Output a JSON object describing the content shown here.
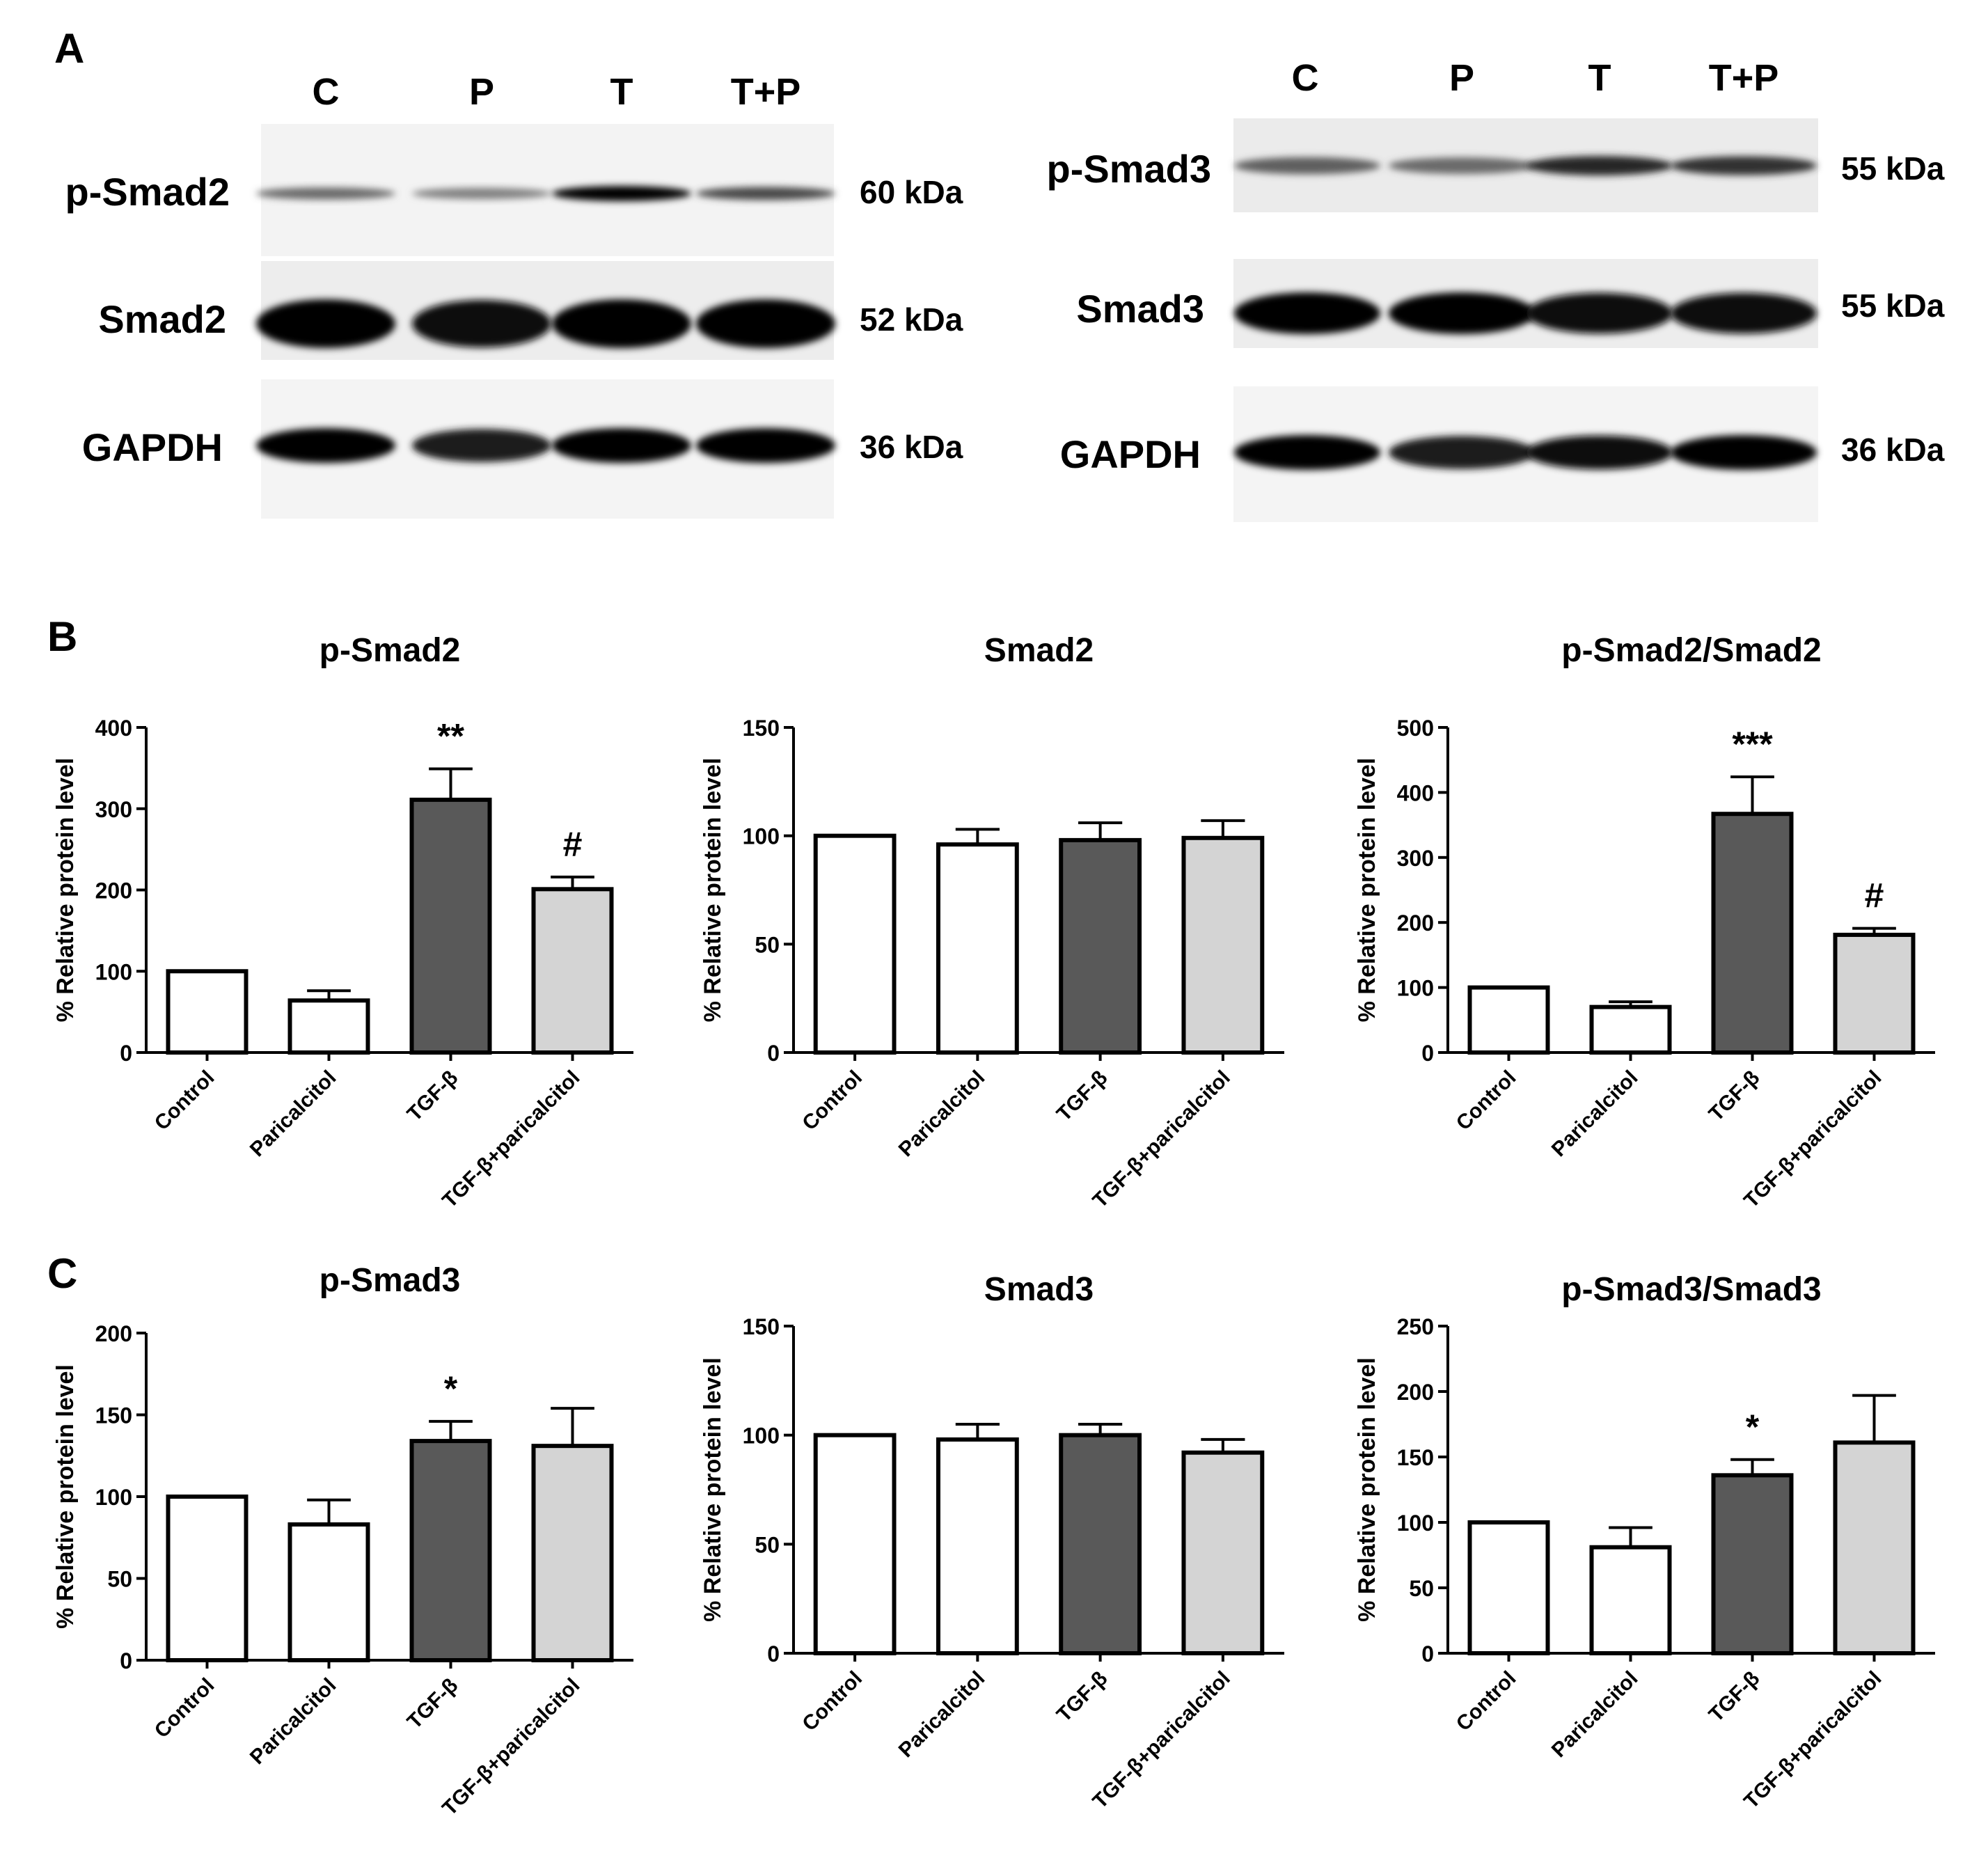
{
  "panels": {
    "a": "A",
    "b": "B",
    "c": "C"
  },
  "blot_left": {
    "lanes": [
      "C",
      "P",
      "T",
      "T+P"
    ],
    "rows": [
      {
        "label": "p-Smad2",
        "kda": "60 kDa",
        "bands": [
          0.55,
          0.45,
          1.0,
          0.7
        ]
      },
      {
        "label": "Smad2",
        "kda": "52 kDa",
        "bands": [
          1.0,
          0.95,
          1.0,
          1.0
        ]
      },
      {
        "label": "GAPDH",
        "kda": "36 kDa",
        "bands": [
          1.0,
          0.9,
          1.0,
          1.0
        ]
      }
    ]
  },
  "blot_right": {
    "lanes": [
      "C",
      "P",
      "T",
      "T+P"
    ],
    "rows": [
      {
        "label": "p-Smad3",
        "kda": "55 kDa",
        "bands": [
          0.6,
          0.55,
          0.85,
          0.8
        ]
      },
      {
        "label": "Smad3",
        "kda": "55 kDa",
        "bands": [
          1.0,
          1.0,
          0.95,
          0.95
        ]
      },
      {
        "label": "GAPDH",
        "kda": "36 kDa",
        "bands": [
          1.0,
          0.9,
          0.95,
          1.0
        ]
      }
    ]
  },
  "chart_data": [
    {
      "type": "bar",
      "panel": "B",
      "title": "p-Smad2",
      "ylabel": "% Relative protein level",
      "categories": [
        "Control",
        "Paricalcitol",
        "TGF-β",
        "TGF-β+paricalcitol"
      ],
      "values": [
        100,
        64,
        311,
        201
      ],
      "errors": [
        0,
        12,
        38,
        15
      ],
      "annotations": [
        "",
        "",
        "**",
        "#"
      ],
      "ylim": [
        0,
        400
      ],
      "yticks": [
        0,
        100,
        200,
        300,
        400
      ],
      "colors": [
        "#ffffff",
        "#ffffff",
        "#595959",
        "#d4d4d4"
      ]
    },
    {
      "type": "bar",
      "panel": "B",
      "title": "Smad2",
      "ylabel": "% Relative protein level",
      "categories": [
        "Control",
        "Paricalcitol",
        "TGF-β",
        "TGF-β+paricalcitol"
      ],
      "values": [
        100,
        96,
        98,
        99
      ],
      "errors": [
        0,
        7,
        8,
        8
      ],
      "annotations": [
        "",
        "",
        "",
        ""
      ],
      "ylim": [
        0,
        150
      ],
      "yticks": [
        0,
        50,
        100,
        150
      ],
      "colors": [
        "#ffffff",
        "#ffffff",
        "#595959",
        "#d4d4d4"
      ]
    },
    {
      "type": "bar",
      "panel": "B",
      "title": "p-Smad2/Smad2",
      "ylabel": "% Relative protein level",
      "categories": [
        "Control",
        "Paricalcitol",
        "TGF-β",
        "TGF-β+paricalcitol"
      ],
      "values": [
        100,
        70,
        367,
        181
      ],
      "errors": [
        0,
        8,
        57,
        10
      ],
      "annotations": [
        "",
        "",
        "***",
        "#"
      ],
      "ylim": [
        0,
        500
      ],
      "yticks": [
        0,
        100,
        200,
        300,
        400,
        500
      ],
      "colors": [
        "#ffffff",
        "#ffffff",
        "#595959",
        "#d4d4d4"
      ]
    },
    {
      "type": "bar",
      "panel": "C",
      "title": "p-Smad3",
      "ylabel": "% Relative protein level",
      "categories": [
        "Control",
        "Paricalcitol",
        "TGF-β",
        "TGF-β+paricalcitol"
      ],
      "values": [
        100,
        83,
        134,
        131
      ],
      "errors": [
        0,
        15,
        12,
        23
      ],
      "annotations": [
        "",
        "",
        "*",
        ""
      ],
      "ylim": [
        0,
        200
      ],
      "yticks": [
        0,
        50,
        100,
        150,
        200
      ],
      "colors": [
        "#ffffff",
        "#ffffff",
        "#595959",
        "#d4d4d4"
      ]
    },
    {
      "type": "bar",
      "panel": "C",
      "title": "Smad3",
      "ylabel": "% Relative protein level",
      "categories": [
        "Control",
        "Paricalcitol",
        "TGF-β",
        "TGF-β+paricalcitol"
      ],
      "values": [
        100,
        98,
        100,
        92
      ],
      "errors": [
        0,
        7,
        5,
        6
      ],
      "annotations": [
        "",
        "",
        "",
        ""
      ],
      "ylim": [
        0,
        150
      ],
      "yticks": [
        0,
        50,
        100,
        150
      ],
      "colors": [
        "#ffffff",
        "#ffffff",
        "#595959",
        "#d4d4d4"
      ]
    },
    {
      "type": "bar",
      "panel": "C",
      "title": "p-Smad3/Smad3",
      "ylabel": "% Relative protein level",
      "categories": [
        "Control",
        "Paricalcitol",
        "TGF-β",
        "TGF-β+paricalcitol"
      ],
      "values": [
        100,
        81,
        136,
        161
      ],
      "errors": [
        0,
        15,
        12,
        36
      ],
      "annotations": [
        "",
        "",
        "*",
        ""
      ],
      "ylim": [
        0,
        250
      ],
      "yticks": [
        0,
        50,
        100,
        150,
        200,
        250
      ],
      "colors": [
        "#ffffff",
        "#ffffff",
        "#595959",
        "#d4d4d4"
      ]
    }
  ]
}
